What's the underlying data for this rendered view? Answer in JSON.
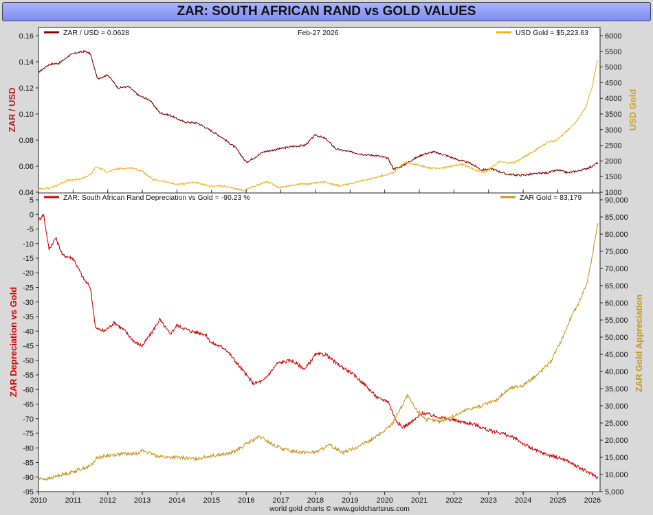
{
  "title": "ZAR: SOUTH AFRICAN RAND vs GOLD VALUES",
  "credit": "world gold charts © www.goldchartsrus.com",
  "chart_data": [
    {
      "type": "line",
      "panel": "top",
      "date_label": "Feb-27  2026",
      "ylabel_left": "ZAR / USD",
      "ylabel_right": "USD Gold",
      "ylim_left": [
        0.04,
        0.16
      ],
      "ylim_right": [
        1000,
        6000
      ],
      "yticks_left": [
        "0.16",
        "0.14",
        "0.12",
        "0.10",
        "0.08",
        "0.06",
        "0.04"
      ],
      "yticks_right": [
        "6000",
        "5500",
        "5000",
        "4500",
        "4000",
        "3500",
        "3000",
        "2500",
        "2000",
        "1500",
        "1000"
      ],
      "series": [
        {
          "name": "ZAR / USD = 0.0628",
          "axis": "left",
          "color": "#8b0000",
          "x": [
            2010.0,
            2010.3,
            2010.6,
            2010.9,
            2011.1,
            2011.35,
            2011.5,
            2011.7,
            2012.0,
            2012.3,
            2012.6,
            2012.9,
            2013.2,
            2013.5,
            2013.8,
            2014.2,
            2014.6,
            2015.0,
            2015.3,
            2015.7,
            2016.0,
            2016.2,
            2016.5,
            2016.9,
            2017.3,
            2017.7,
            2018.0,
            2018.3,
            2018.6,
            2019.0,
            2019.4,
            2019.8,
            2020.1,
            2020.25,
            2020.5,
            2020.8,
            2021.1,
            2021.4,
            2021.8,
            2022.1,
            2022.5,
            2022.8,
            2023.1,
            2023.5,
            2023.9,
            2024.3,
            2024.7,
            2025.0,
            2025.3,
            2025.7,
            2026.0,
            2026.16
          ],
          "values": [
            0.132,
            0.138,
            0.139,
            0.145,
            0.147,
            0.148,
            0.146,
            0.127,
            0.13,
            0.12,
            0.121,
            0.114,
            0.111,
            0.101,
            0.099,
            0.094,
            0.093,
            0.087,
            0.082,
            0.074,
            0.063,
            0.066,
            0.071,
            0.073,
            0.075,
            0.076,
            0.084,
            0.081,
            0.073,
            0.071,
            0.069,
            0.068,
            0.066,
            0.058,
            0.06,
            0.065,
            0.069,
            0.071,
            0.068,
            0.065,
            0.062,
            0.057,
            0.058,
            0.054,
            0.053,
            0.054,
            0.055,
            0.057,
            0.055,
            0.057,
            0.06,
            0.0628
          ]
        },
        {
          "name": "USD Gold  = $5,223.63",
          "axis": "right",
          "color": "#f2b01e",
          "x": [
            2010.0,
            2010.4,
            2010.8,
            2011.2,
            2011.5,
            2011.67,
            2012.0,
            2012.3,
            2012.7,
            2013.0,
            2013.3,
            2013.6,
            2014.0,
            2014.5,
            2014.9,
            2015.3,
            2015.7,
            2015.95,
            2016.3,
            2016.6,
            2016.95,
            2017.5,
            2017.9,
            2018.3,
            2018.7,
            2019.1,
            2019.5,
            2019.8,
            2020.2,
            2020.6,
            2020.9,
            2021.3,
            2021.7,
            2022.2,
            2022.7,
            2022.9,
            2023.3,
            2023.7,
            2023.9,
            2024.3,
            2024.7,
            2024.95,
            2025.3,
            2025.6,
            2025.8,
            2026.0,
            2026.1,
            2026.16
          ],
          "values": [
            1110,
            1150,
            1370,
            1420,
            1560,
            1820,
            1650,
            1750,
            1780,
            1670,
            1400,
            1350,
            1250,
            1320,
            1200,
            1200,
            1110,
            1060,
            1230,
            1340,
            1150,
            1260,
            1280,
            1330,
            1200,
            1300,
            1410,
            1500,
            1600,
            1950,
            1880,
            1770,
            1780,
            1900,
            1680,
            1640,
            1980,
            1920,
            2050,
            2300,
            2600,
            2650,
            3000,
            3350,
            3700,
            4400,
            5000,
            5223.63
          ]
        }
      ]
    },
    {
      "type": "line",
      "panel": "bottom",
      "ylabel_left": "ZAR Depreciation vs Gold",
      "ylabel_right": "ZAR Gold Appreciation",
      "ylim_left": [
        -95,
        5
      ],
      "ylim_right": [
        5000,
        90000
      ],
      "yticks_left": [
        "5",
        "0",
        "-5",
        "-10",
        "-15",
        "-20",
        "-25",
        "-30",
        "-35",
        "-40",
        "-45",
        "-50",
        "-55",
        "-60",
        "-65",
        "-70",
        "-75",
        "-80",
        "-85",
        "-90",
        "-95"
      ],
      "yticks_right": [
        "90,000",
        "85,000",
        "80,000",
        "75,000",
        "70,000",
        "65,000",
        "60,000",
        "55,000",
        "50,000",
        "45,000",
        "40,000",
        "35,000",
        "30,000",
        "25,000",
        "20,000",
        "15,000",
        "10,000",
        "5,000"
      ],
      "series": [
        {
          "name": "ZAR: South African Rand Depreciation vs Gold = -90.23 %",
          "axis": "left",
          "color": "#d40000",
          "x": [
            2010.0,
            2010.15,
            2010.3,
            2010.5,
            2010.7,
            2011.0,
            2011.3,
            2011.5,
            2011.65,
            2011.9,
            2012.2,
            2012.5,
            2012.8,
            2013.0,
            2013.3,
            2013.5,
            2013.8,
            2014.0,
            2014.4,
            2014.8,
            2015.0,
            2015.4,
            2015.8,
            2016.0,
            2016.2,
            2016.5,
            2016.9,
            2017.3,
            2017.7,
            2018.0,
            2018.3,
            2018.6,
            2019.0,
            2019.4,
            2019.8,
            2020.1,
            2020.3,
            2020.5,
            2020.8,
            2021.1,
            2021.4,
            2021.8,
            2022.2,
            2022.6,
            2023.0,
            2023.4,
            2023.8,
            2024.2,
            2024.6,
            2024.9,
            2025.2,
            2025.5,
            2025.8,
            2026.0,
            2026.16
          ],
          "values": [
            -2,
            0,
            -12,
            -8,
            -14,
            -15,
            -22,
            -25,
            -39,
            -40,
            -37,
            -40,
            -44,
            -45,
            -40,
            -36,
            -41,
            -38,
            -40,
            -41,
            -44,
            -46,
            -52,
            -55,
            -58,
            -57,
            -51,
            -50,
            -53,
            -48,
            -48,
            -51,
            -54,
            -58,
            -63,
            -64,
            -70,
            -73,
            -71,
            -68,
            -69,
            -70,
            -71,
            -72,
            -74,
            -75,
            -77,
            -80,
            -82,
            -83,
            -84,
            -86,
            -88,
            -89,
            -90.23
          ]
        },
        {
          "name": "ZAR Gold = 83,179",
          "axis": "right",
          "color": "#c8961c",
          "x": [
            2010.0,
            2010.3,
            2010.6,
            2010.9,
            2011.2,
            2011.5,
            2011.7,
            2012.0,
            2012.4,
            2012.8,
            2013.0,
            2013.4,
            2013.7,
            2014.0,
            2014.5,
            2015.0,
            2015.5,
            2015.8,
            2016.1,
            2016.4,
            2016.8,
            2017.2,
            2017.6,
            2018.0,
            2018.4,
            2018.8,
            2019.2,
            2019.6,
            2019.9,
            2020.2,
            2020.5,
            2020.65,
            2020.9,
            2021.2,
            2021.6,
            2022.0,
            2022.4,
            2022.8,
            2023.2,
            2023.6,
            2024.0,
            2024.4,
            2024.8,
            2025.1,
            2025.35,
            2025.6,
            2025.85,
            2026.0,
            2026.1,
            2026.16
          ],
          "values": [
            8800,
            8700,
            9800,
            10500,
            11500,
            12500,
            15000,
            15500,
            16000,
            16000,
            17000,
            15500,
            15000,
            15000,
            14500,
            15500,
            16000,
            17500,
            19500,
            21000,
            18500,
            17000,
            16500,
            16500,
            18500,
            16500,
            18000,
            20000,
            22000,
            24500,
            30000,
            33000,
            29000,
            26000,
            25500,
            27000,
            29000,
            30000,
            31500,
            35000,
            36000,
            39000,
            43000,
            49000,
            55000,
            60000,
            66000,
            74000,
            80000,
            83179
          ]
        }
      ]
    }
  ],
  "x_ticks": [
    "2010",
    "2011",
    "2012",
    "2013",
    "2014",
    "2015",
    "2016",
    "2017",
    "2018",
    "2019",
    "2020",
    "2021",
    "2022",
    "2023",
    "2024",
    "2025",
    "2026"
  ],
  "colors": {
    "zar_usd": "#8b0000",
    "usd_gold": "#f2b01e",
    "zar_dep": "#d40000",
    "zar_gold": "#c8961c",
    "left_title_top": "#b22222",
    "right_title_top": "#d4a017",
    "left_title_bottom": "#d40000",
    "right_title_bottom": "#c8961c"
  }
}
